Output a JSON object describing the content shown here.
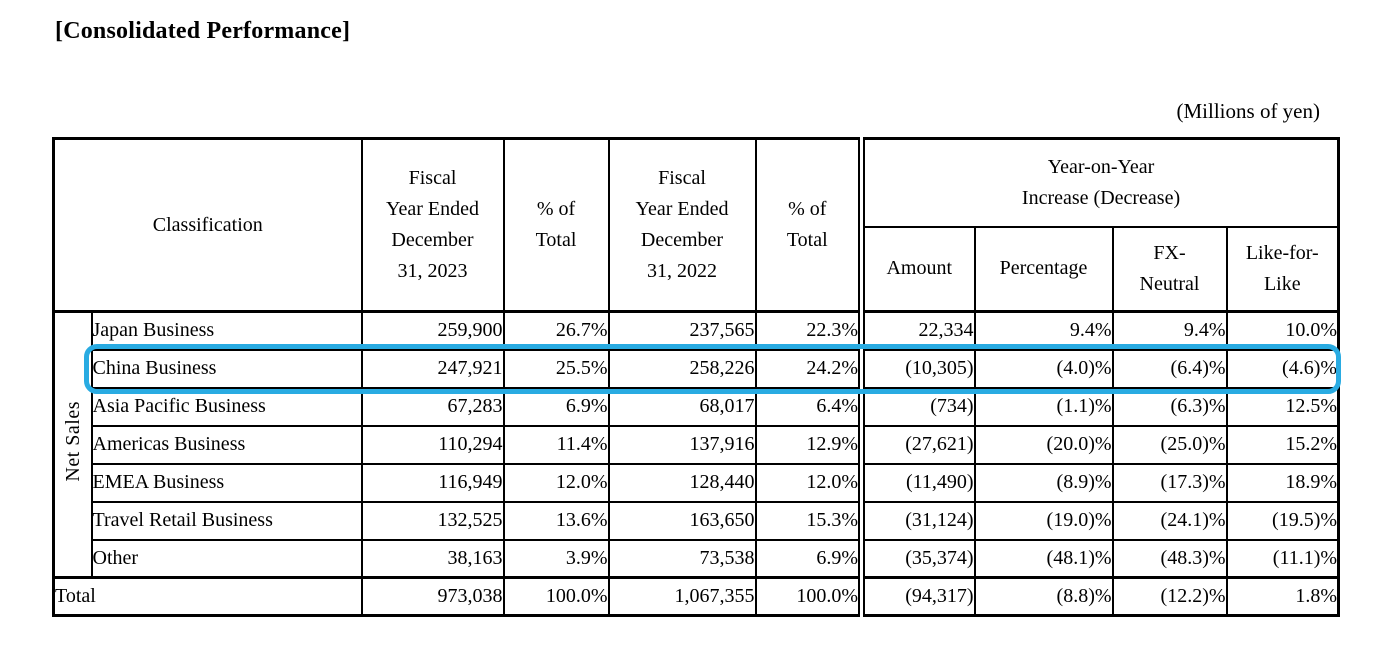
{
  "doc": {
    "title": "[Consolidated Performance]",
    "units_note": "(Millions of yen)"
  },
  "highlight": {
    "color": "#29ABE2",
    "target_row": "China Business"
  },
  "table": {
    "headers": {
      "classification": "Classification",
      "fy2023": "Fiscal\nYear Ended\nDecember\n31, 2023",
      "pct_total_2023": "% of\nTotal",
      "fy2022": "Fiscal\nYear Ended\nDecember\n31, 2022",
      "pct_total_2022": "% of\nTotal",
      "yoy": "Year-on-Year\nIncrease (Decrease)",
      "amount": "Amount",
      "percentage": "Percentage",
      "fx_neutral": "FX-\nNeutral",
      "like_for_like": "Like-for-\nLike"
    },
    "group_label": "Net Sales",
    "rows": [
      {
        "label": "Japan Business",
        "fy2023": "259,900",
        "pct2023": "26.7%",
        "fy2022": "237,565",
        "pct2022": "22.3%",
        "amount": "22,334",
        "percentage": "9.4%",
        "fx": "9.4%",
        "lfl": "10.0%",
        "highlighted": false
      },
      {
        "label": "China Business",
        "fy2023": "247,921",
        "pct2023": "25.5%",
        "fy2022": "258,226",
        "pct2022": "24.2%",
        "amount": "(10,305)",
        "percentage": "(4.0)%",
        "fx": "(6.4)%",
        "lfl": "(4.6)%",
        "highlighted": true
      },
      {
        "label": "Asia Pacific Business",
        "fy2023": "67,283",
        "pct2023": "6.9%",
        "fy2022": "68,017",
        "pct2022": "6.4%",
        "amount": "(734)",
        "percentage": "(1.1)%",
        "fx": "(6.3)%",
        "lfl": "12.5%",
        "highlighted": false
      },
      {
        "label": "Americas Business",
        "fy2023": "110,294",
        "pct2023": "11.4%",
        "fy2022": "137,916",
        "pct2022": "12.9%",
        "amount": "(27,621)",
        "percentage": "(20.0)%",
        "fx": "(25.0)%",
        "lfl": "15.2%",
        "highlighted": false
      },
      {
        "label": "EMEA Business",
        "fy2023": "116,949",
        "pct2023": "12.0%",
        "fy2022": "128,440",
        "pct2022": "12.0%",
        "amount": "(11,490)",
        "percentage": "(8.9)%",
        "fx": "(17.3)%",
        "lfl": "18.9%",
        "highlighted": false
      },
      {
        "label": "Travel Retail Business",
        "fy2023": "132,525",
        "pct2023": "13.6%",
        "fy2022": "163,650",
        "pct2022": "15.3%",
        "amount": "(31,124)",
        "percentage": "(19.0)%",
        "fx": "(24.1)%",
        "lfl": "(19.5)%",
        "highlighted": false
      },
      {
        "label": "Other",
        "fy2023": "38,163",
        "pct2023": "3.9%",
        "fy2022": "73,538",
        "pct2022": "6.9%",
        "amount": "(35,374)",
        "percentage": "(48.1)%",
        "fx": "(48.3)%",
        "lfl": "(11.1)%",
        "highlighted": false
      }
    ],
    "total": {
      "label": "Total",
      "fy2023": "973,038",
      "pct2023": "100.0%",
      "fy2022": "1,067,355",
      "pct2022": "100.0%",
      "amount": "(94,317)",
      "percentage": "(8.8)%",
      "fx": "(12.2)%",
      "lfl": "1.8%"
    }
  }
}
